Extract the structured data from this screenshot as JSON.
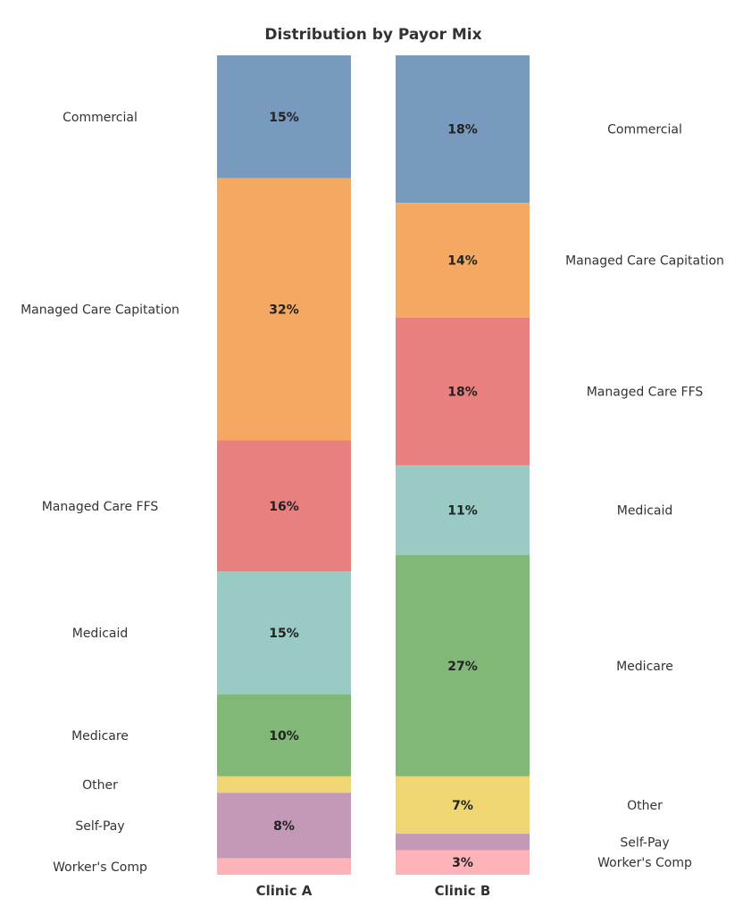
{
  "chart_data": {
    "type": "bar",
    "stacked": true,
    "normalized": true,
    "title": "Distribution by Payor Mix",
    "xlabel": "",
    "ylabel": "",
    "ylim": [
      0,
      100
    ],
    "grid": false,
    "legend": "none (categories labeled beside each bar)",
    "categories": [
      "Clinic A",
      "Clinic B"
    ],
    "series": [
      {
        "name": "Commercial",
        "color": "#779ABE",
        "values": [
          15,
          18
        ],
        "labels": [
          "15%",
          "18%"
        ]
      },
      {
        "name": "Managed Care Capitation",
        "color": "#F4A862",
        "values": [
          32,
          14
        ],
        "labels": [
          "32%",
          "14%"
        ]
      },
      {
        "name": "Managed Care FFS",
        "color": "#E88080",
        "values": [
          16,
          18
        ],
        "labels": [
          "16%",
          "18%"
        ]
      },
      {
        "name": "Medicaid",
        "color": "#99CAC4",
        "values": [
          15,
          11
        ],
        "labels": [
          "15%",
          "11%"
        ]
      },
      {
        "name": "Medicare",
        "color": "#81B878",
        "values": [
          10,
          27
        ],
        "labels": [
          "10%",
          "27%"
        ]
      },
      {
        "name": "Other",
        "color": "#EFD672",
        "values": [
          2,
          7
        ],
        "labels": [
          "",
          "7%"
        ]
      },
      {
        "name": "Self-Pay",
        "color": "#C399B7",
        "values": [
          8,
          2
        ],
        "labels": [
          "8%",
          ""
        ]
      },
      {
        "name": "Worker's Comp",
        "color": "#FDB3B7",
        "values": [
          2,
          3
        ],
        "labels": [
          "",
          "3%"
        ]
      }
    ]
  }
}
